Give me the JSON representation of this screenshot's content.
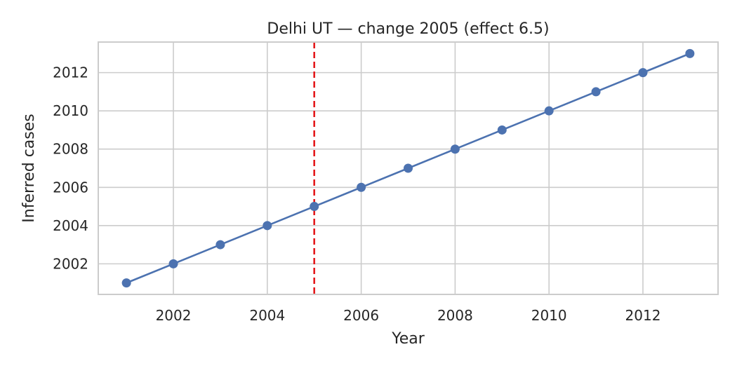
{
  "chart_data": {
    "type": "line",
    "title": "Delhi UT — change 2005 (effect 6.5)",
    "xlabel": "Year",
    "ylabel": "Inferred cases",
    "xlim": [
      2000.4,
      2013.6
    ],
    "ylim": [
      2000.4,
      2013.6
    ],
    "x_ticks": [
      2002,
      2004,
      2006,
      2008,
      2010,
      2012
    ],
    "y_ticks": [
      2002,
      2004,
      2006,
      2008,
      2010,
      2012
    ],
    "grid": true,
    "series": [
      {
        "x": [
          2001,
          2002,
          2003,
          2004,
          2005,
          2006,
          2007,
          2008,
          2009,
          2010,
          2011,
          2012,
          2013
        ],
        "y": [
          2001,
          2002,
          2003,
          2004,
          2005,
          2006,
          2007,
          2008,
          2009,
          2010,
          2011,
          2012,
          2013
        ],
        "color": "#4c72b0",
        "marker": "circle"
      }
    ],
    "vertical_line": {
      "x": 2005,
      "color": "#e41a1c",
      "style": "dashed"
    }
  }
}
